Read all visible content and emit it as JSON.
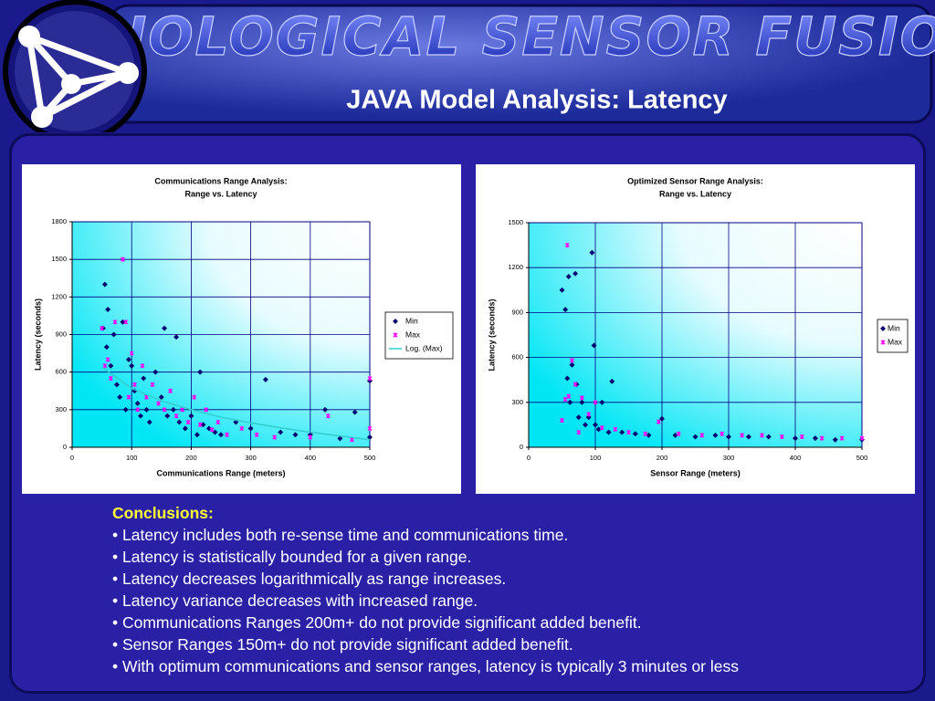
{
  "header": {
    "banner": "BIOLOGICAL SENSOR FUSION",
    "title": "JAVA Model Analysis: Latency"
  },
  "chart_data": [
    {
      "type": "scatter",
      "title": "Communications Range Analysis:",
      "subtitle": "Range vs. Latency",
      "x_label": "Communications Range (meters)",
      "y_label": "Latency (seconds)",
      "xlim": [
        0,
        500
      ],
      "xticks": [
        0,
        100,
        200,
        300,
        400,
        500
      ],
      "ylim": [
        0,
        1800
      ],
      "yticks": [
        0,
        300,
        600,
        900,
        1200,
        1500,
        1800
      ],
      "grid": true,
      "legend": "right",
      "series": [
        {
          "name": "Min",
          "color": "#000080",
          "marker": "diamond",
          "x": [
            55,
            60,
            52,
            58,
            65,
            70,
            75,
            80,
            85,
            90,
            95,
            100,
            105,
            110,
            115,
            120,
            125,
            130,
            140,
            150,
            155,
            160,
            170,
            175,
            180,
            190,
            200,
            210,
            215,
            220,
            230,
            240,
            250,
            275,
            300,
            325,
            350,
            375,
            400,
            425,
            450,
            475,
            500,
            500
          ],
          "values": [
            1300,
            1100,
            950,
            800,
            650,
            900,
            500,
            400,
            1000,
            300,
            700,
            650,
            450,
            350,
            250,
            550,
            300,
            200,
            600,
            400,
            950,
            250,
            300,
            880,
            200,
            150,
            250,
            100,
            600,
            180,
            150,
            120,
            100,
            200,
            150,
            540,
            120,
            100,
            100,
            300,
            70,
            280,
            530,
            80
          ]
        },
        {
          "name": "Max",
          "color": "#ff00ff",
          "marker": "star",
          "x": [
            50,
            55,
            60,
            65,
            72,
            85,
            90,
            95,
            100,
            105,
            110,
            118,
            125,
            135,
            145,
            155,
            165,
            175,
            185,
            195,
            205,
            215,
            225,
            235,
            245,
            260,
            285,
            310,
            340,
            400,
            430,
            470,
            500,
            500
          ],
          "values": [
            950,
            650,
            700,
            550,
            1000,
            1500,
            1000,
            400,
            750,
            500,
            300,
            650,
            400,
            500,
            350,
            300,
            450,
            250,
            300,
            200,
            400,
            180,
            300,
            140,
            200,
            100,
            150,
            100,
            80,
            80,
            250,
            60,
            550,
            150
          ]
        },
        {
          "name": "Log. (Max)",
          "color": "#33cccc",
          "marker": "line",
          "x": [
            50,
            100,
            150,
            200,
            250,
            300,
            350,
            400,
            450,
            500
          ],
          "values": [
            640,
            470,
            370,
            300,
            240,
            195,
            155,
            120,
            90,
            60
          ]
        }
      ]
    },
    {
      "type": "scatter",
      "title": "Optimized Sensor Range Analysis:",
      "subtitle": "Range vs. Latency",
      "x_label": "Sensor Range (meters)",
      "y_label": "Latency (seconds)",
      "xlim": [
        0,
        500
      ],
      "xticks": [
        0,
        100,
        200,
        300,
        400,
        500
      ],
      "ylim": [
        0,
        1500
      ],
      "yticks": [
        0,
        300,
        600,
        900,
        1200,
        1500
      ],
      "grid": true,
      "legend": "right",
      "series": [
        {
          "name": "Min",
          "color": "#000080",
          "marker": "diamond",
          "x": [
            50,
            55,
            58,
            60,
            62,
            65,
            70,
            72,
            75,
            80,
            85,
            90,
            95,
            98,
            100,
            105,
            110,
            120,
            125,
            140,
            160,
            180,
            200,
            220,
            250,
            280,
            300,
            330,
            360,
            400,
            430,
            460,
            500
          ],
          "values": [
            1050,
            920,
            460,
            1140,
            300,
            550,
            1160,
            420,
            200,
            300,
            150,
            200,
            1300,
            680,
            150,
            120,
            300,
            100,
            440,
            100,
            90,
            80,
            190,
            80,
            70,
            80,
            70,
            70,
            70,
            60,
            60,
            50,
            50
          ]
        },
        {
          "name": "Max",
          "color": "#ff00ff",
          "marker": "star",
          "x": [
            50,
            55,
            58,
            60,
            65,
            70,
            75,
            80,
            90,
            100,
            110,
            130,
            150,
            175,
            195,
            225,
            260,
            290,
            320,
            350,
            380,
            410,
            440,
            470,
            500
          ],
          "values": [
            180,
            320,
            1350,
            340,
            580,
            420,
            100,
            330,
            220,
            300,
            130,
            120,
            100,
            90,
            170,
            90,
            80,
            90,
            80,
            80,
            70,
            70,
            60,
            60,
            60
          ]
        }
      ]
    }
  ],
  "conclusions": {
    "heading": "Conclusions:",
    "bullets": [
      "• Latency includes both re-sense time and communications time.",
      "• Latency is statistically bounded for a given range.",
      "• Latency decreases logarithmically as range increases.",
      "• Latency variance decreases with increased range.",
      "• Communications Ranges 200m+ do not provide significant added benefit.",
      "• Sensor Ranges 150m+ do not provide significant added benefit.",
      "• With optimum communications and sensor ranges, latency is typically 3 minutes or less"
    ]
  }
}
